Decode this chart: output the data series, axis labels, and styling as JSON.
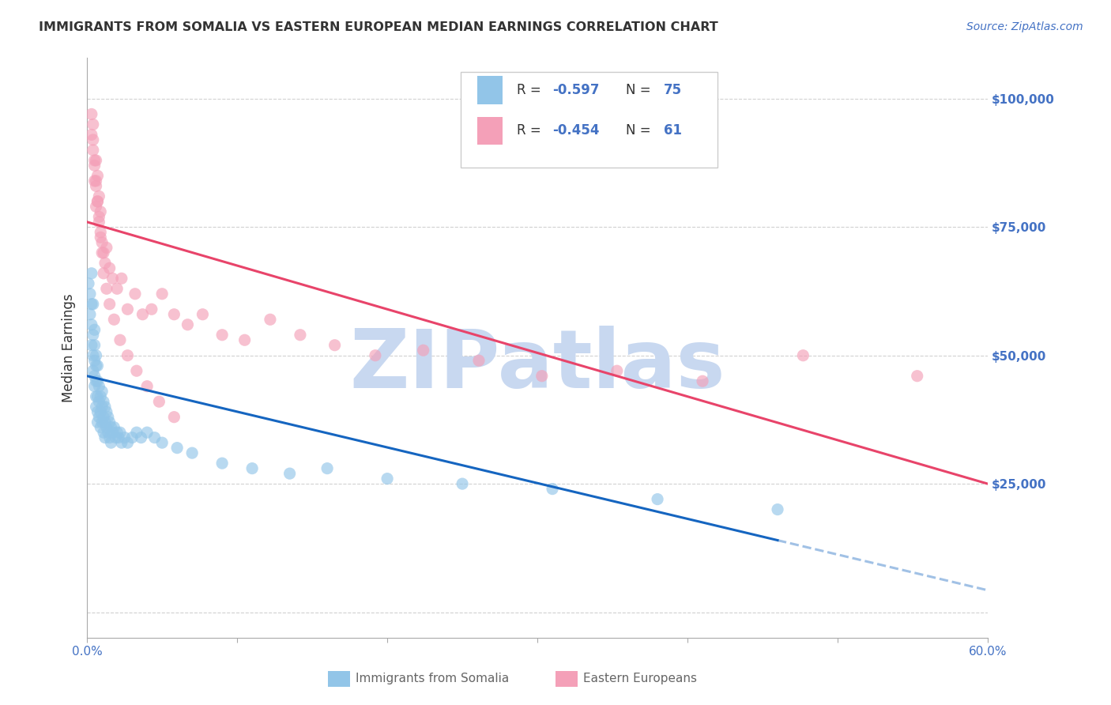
{
  "title": "IMMIGRANTS FROM SOMALIA VS EASTERN EUROPEAN MEDIAN EARNINGS CORRELATION CHART",
  "source": "Source: ZipAtlas.com",
  "ylabel": "Median Earnings",
  "y_ticks": [
    0,
    25000,
    50000,
    75000,
    100000
  ],
  "y_tick_labels": [
    "",
    "$25,000",
    "$50,000",
    "$75,000",
    "$100,000"
  ],
  "x_range": [
    0.0,
    0.6
  ],
  "y_range": [
    -5000,
    108000
  ],
  "legend_r1": "-0.597",
  "legend_n1": "75",
  "legend_r2": "-0.454",
  "legend_n2": "61",
  "color_somalia": "#92C5E8",
  "color_eastern": "#F4A0B8",
  "color_somalia_line": "#1565C0",
  "color_eastern_line": "#E8446A",
  "color_blue_text": "#4472C4",
  "color_dark": "#333333",
  "color_mid": "#666666",
  "watermark_color": "#C8D8F0",
  "background": "#FFFFFF",
  "somalia_x": [
    0.001,
    0.002,
    0.002,
    0.003,
    0.003,
    0.003,
    0.004,
    0.004,
    0.004,
    0.005,
    0.005,
    0.005,
    0.005,
    0.006,
    0.006,
    0.006,
    0.006,
    0.007,
    0.007,
    0.007,
    0.007,
    0.008,
    0.008,
    0.008,
    0.009,
    0.009,
    0.009,
    0.01,
    0.01,
    0.01,
    0.011,
    0.011,
    0.011,
    0.012,
    0.012,
    0.012,
    0.013,
    0.013,
    0.014,
    0.014,
    0.015,
    0.015,
    0.016,
    0.016,
    0.017,
    0.018,
    0.019,
    0.02,
    0.021,
    0.022,
    0.023,
    0.025,
    0.027,
    0.03,
    0.033,
    0.036,
    0.04,
    0.045,
    0.05,
    0.06,
    0.07,
    0.09,
    0.11,
    0.135,
    0.16,
    0.2,
    0.25,
    0.31,
    0.38,
    0.46,
    0.003,
    0.004,
    0.005,
    0.006,
    0.007
  ],
  "somalia_y": [
    64000,
    62000,
    58000,
    56000,
    60000,
    52000,
    54000,
    50000,
    47000,
    52000,
    49000,
    46000,
    44000,
    48000,
    45000,
    42000,
    40000,
    45000,
    42000,
    39000,
    37000,
    44000,
    41000,
    38000,
    42000,
    39000,
    36000,
    43000,
    40000,
    37000,
    41000,
    38000,
    35000,
    40000,
    37000,
    34000,
    39000,
    36000,
    38000,
    35000,
    37000,
    34000,
    36000,
    33000,
    35000,
    36000,
    34000,
    35000,
    34000,
    35000,
    33000,
    34000,
    33000,
    34000,
    35000,
    34000,
    35000,
    34000,
    33000,
    32000,
    31000,
    29000,
    28000,
    27000,
    28000,
    26000,
    25000,
    24000,
    22000,
    20000,
    66000,
    60000,
    55000,
    50000,
    48000
  ],
  "eastern_x": [
    0.003,
    0.003,
    0.004,
    0.004,
    0.005,
    0.005,
    0.006,
    0.006,
    0.006,
    0.007,
    0.007,
    0.008,
    0.008,
    0.009,
    0.009,
    0.01,
    0.011,
    0.012,
    0.013,
    0.015,
    0.017,
    0.02,
    0.023,
    0.027,
    0.032,
    0.037,
    0.043,
    0.05,
    0.058,
    0.067,
    0.077,
    0.09,
    0.105,
    0.122,
    0.142,
    0.165,
    0.192,
    0.224,
    0.261,
    0.303,
    0.353,
    0.41,
    0.477,
    0.553,
    0.004,
    0.005,
    0.006,
    0.007,
    0.008,
    0.009,
    0.01,
    0.011,
    0.013,
    0.015,
    0.018,
    0.022,
    0.027,
    0.033,
    0.04,
    0.048,
    0.058
  ],
  "eastern_y": [
    97000,
    93000,
    95000,
    90000,
    87000,
    84000,
    88000,
    83000,
    79000,
    85000,
    80000,
    81000,
    77000,
    78000,
    74000,
    72000,
    70000,
    68000,
    71000,
    67000,
    65000,
    63000,
    65000,
    59000,
    62000,
    58000,
    59000,
    62000,
    58000,
    56000,
    58000,
    54000,
    53000,
    57000,
    54000,
    52000,
    50000,
    51000,
    49000,
    46000,
    47000,
    45000,
    50000,
    46000,
    92000,
    88000,
    84000,
    80000,
    76000,
    73000,
    70000,
    66000,
    63000,
    60000,
    57000,
    53000,
    50000,
    47000,
    44000,
    41000,
    38000
  ],
  "trend_somalia_x0": 0.0,
  "trend_somalia_y0": 46000,
  "trend_somalia_x1": 0.46,
  "trend_somalia_y1": 14000,
  "trend_eastern_x0": 0.0,
  "trend_eastern_y0": 76000,
  "trend_eastern_x1": 0.6,
  "trend_eastern_y1": 25000
}
